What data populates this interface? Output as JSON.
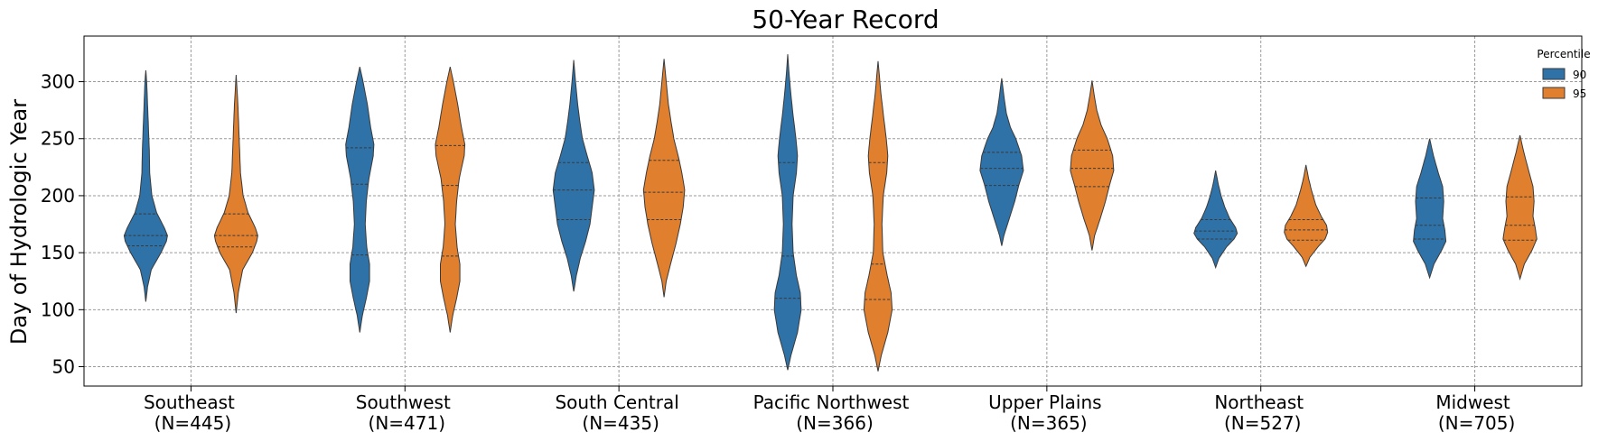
{
  "chart_data": {
    "type": "violin",
    "title": "50-Year Record",
    "xlabel": "",
    "ylabel": "Day of Hydrologic Year",
    "ylim": [
      33,
      340
    ],
    "yticks": [
      50,
      100,
      150,
      200,
      250,
      300
    ],
    "grid": true,
    "legend": {
      "title": "Percentile",
      "position": "top-right"
    },
    "categories": [
      {
        "line1": "Southeast",
        "line2": "(N=445)"
      },
      {
        "line1": "Southwest",
        "line2": "(N=471)"
      },
      {
        "line1": "South Central",
        "line2": "(N=435)"
      },
      {
        "line1": "Pacific Northwest",
        "line2": "(N=366)"
      },
      {
        "line1": "Upper Plains",
        "line2": "(N=365)"
      },
      {
        "line1": "Northeast",
        "line2": "(N=527)"
      },
      {
        "line1": "Midwest",
        "line2": "(N=705)"
      }
    ],
    "series": [
      {
        "name": "90",
        "color": "#2e72a8",
        "violins": [
          {
            "min": 107,
            "max": 310,
            "q1": 156,
            "median": 165,
            "q3": 184,
            "profile": [
              [
                107,
                0.0
              ],
              [
                120,
                0.08
              ],
              [
                135,
                0.25
              ],
              [
                150,
                0.7
              ],
              [
                160,
                0.95
              ],
              [
                165,
                1.0
              ],
              [
                172,
                0.85
              ],
              [
                185,
                0.5
              ],
              [
                200,
                0.28
              ],
              [
                220,
                0.18
              ],
              [
                240,
                0.16
              ],
              [
                260,
                0.12
              ],
              [
                280,
                0.08
              ],
              [
                300,
                0.04
              ],
              [
                310,
                0.0
              ]
            ]
          },
          {
            "min": 80,
            "max": 313,
            "q1": 148,
            "median": 210,
            "q3": 242,
            "profile": [
              [
                80,
                0.0
              ],
              [
                95,
                0.12
              ],
              [
                110,
                0.3
              ],
              [
                125,
                0.45
              ],
              [
                140,
                0.45
              ],
              [
                155,
                0.32
              ],
              [
                175,
                0.25
              ],
              [
                195,
                0.3
              ],
              [
                215,
                0.42
              ],
              [
                235,
                0.62
              ],
              [
                245,
                0.65
              ],
              [
                260,
                0.5
              ],
              [
                280,
                0.35
              ],
              [
                300,
                0.15
              ],
              [
                313,
                0.0
              ]
            ]
          },
          {
            "min": 116,
            "max": 319,
            "q1": 179,
            "median": 205,
            "q3": 229,
            "profile": [
              [
                116,
                0.0
              ],
              [
                130,
                0.12
              ],
              [
                145,
                0.3
              ],
              [
                160,
                0.55
              ],
              [
                175,
                0.75
              ],
              [
                190,
                0.85
              ],
              [
                205,
                0.95
              ],
              [
                220,
                0.85
              ],
              [
                235,
                0.62
              ],
              [
                250,
                0.4
              ],
              [
                265,
                0.28
              ],
              [
                280,
                0.18
              ],
              [
                300,
                0.08
              ],
              [
                319,
                0.0
              ]
            ]
          },
          {
            "min": 47,
            "max": 324,
            "q1": 110,
            "median": 147,
            "q3": 229,
            "profile": [
              [
                47,
                0.0
              ],
              [
                60,
                0.15
              ],
              [
                80,
                0.45
              ],
              [
                100,
                0.62
              ],
              [
                115,
                0.58
              ],
              [
                130,
                0.4
              ],
              [
                150,
                0.25
              ],
              [
                175,
                0.2
              ],
              [
                200,
                0.25
              ],
              [
                220,
                0.4
              ],
              [
                235,
                0.45
              ],
              [
                250,
                0.38
              ],
              [
                270,
                0.25
              ],
              [
                290,
                0.14
              ],
              [
                310,
                0.05
              ],
              [
                324,
                0.0
              ]
            ]
          },
          {
            "min": 156,
            "max": 303,
            "q1": 209,
            "median": 224,
            "q3": 238,
            "profile": [
              [
                156,
                0.0
              ],
              [
                165,
                0.1
              ],
              [
                180,
                0.35
              ],
              [
                195,
                0.6
              ],
              [
                210,
                0.8
              ],
              [
                222,
                1.0
              ],
              [
                235,
                0.92
              ],
              [
                250,
                0.65
              ],
              [
                260,
                0.4
              ],
              [
                272,
                0.22
              ],
              [
                285,
                0.12
              ],
              [
                303,
                0.0
              ]
            ]
          },
          {
            "min": 137,
            "max": 222,
            "q1": 162,
            "median": 169,
            "q3": 179,
            "profile": [
              [
                137,
                0.0
              ],
              [
                145,
                0.15
              ],
              [
                155,
                0.5
              ],
              [
                162,
                0.85
              ],
              [
                167,
                1.0
              ],
              [
                172,
                0.92
              ],
              [
                180,
                0.65
              ],
              [
                190,
                0.42
              ],
              [
                200,
                0.25
              ],
              [
                210,
                0.12
              ],
              [
                222,
                0.0
              ]
            ]
          },
          {
            "min": 128,
            "max": 250,
            "q1": 162,
            "median": 174,
            "q3": 198,
            "profile": [
              [
                128,
                0.0
              ],
              [
                140,
                0.2
              ],
              [
                152,
                0.55
              ],
              [
                160,
                0.75
              ],
              [
                170,
                0.7
              ],
              [
                180,
                0.6
              ],
              [
                195,
                0.65
              ],
              [
                208,
                0.6
              ],
              [
                220,
                0.4
              ],
              [
                235,
                0.18
              ],
              [
                250,
                0.0
              ]
            ]
          }
        ]
      },
      {
        "name": "95",
        "color": "#e07f2d",
        "violins": [
          {
            "min": 97,
            "max": 306,
            "q1": 155,
            "median": 165,
            "q3": 184,
            "profile": [
              [
                97,
                0.0
              ],
              [
                115,
                0.1
              ],
              [
                135,
                0.3
              ],
              [
                150,
                0.75
              ],
              [
                160,
                0.95
              ],
              [
                165,
                1.0
              ],
              [
                172,
                0.88
              ],
              [
                185,
                0.55
              ],
              [
                200,
                0.32
              ],
              [
                220,
                0.2
              ],
              [
                240,
                0.16
              ],
              [
                260,
                0.12
              ],
              [
                280,
                0.08
              ],
              [
                306,
                0.0
              ]
            ]
          },
          {
            "min": 80,
            "max": 313,
            "q1": 147,
            "median": 209,
            "q3": 244,
            "profile": [
              [
                80,
                0.0
              ],
              [
                95,
                0.12
              ],
              [
                110,
                0.3
              ],
              [
                125,
                0.45
              ],
              [
                140,
                0.45
              ],
              [
                155,
                0.32
              ],
              [
                175,
                0.24
              ],
              [
                195,
                0.3
              ],
              [
                215,
                0.42
              ],
              [
                235,
                0.65
              ],
              [
                245,
                0.68
              ],
              [
                260,
                0.52
              ],
              [
                280,
                0.35
              ],
              [
                300,
                0.15
              ],
              [
                313,
                0.0
              ]
            ]
          },
          {
            "min": 111,
            "max": 320,
            "q1": 179,
            "median": 203,
            "q3": 231,
            "profile": [
              [
                111,
                0.0
              ],
              [
                125,
                0.1
              ],
              [
                140,
                0.3
              ],
              [
                158,
                0.55
              ],
              [
                175,
                0.75
              ],
              [
                190,
                0.88
              ],
              [
                205,
                0.95
              ],
              [
                220,
                0.82
              ],
              [
                235,
                0.65
              ],
              [
                250,
                0.45
              ],
              [
                265,
                0.32
              ],
              [
                280,
                0.2
              ],
              [
                300,
                0.1
              ],
              [
                320,
                0.0
              ]
            ]
          },
          {
            "min": 46,
            "max": 318,
            "q1": 109,
            "median": 140,
            "q3": 229,
            "profile": [
              [
                46,
                0.0
              ],
              [
                60,
                0.15
              ],
              [
                80,
                0.45
              ],
              [
                100,
                0.65
              ],
              [
                115,
                0.6
              ],
              [
                130,
                0.42
              ],
              [
                150,
                0.22
              ],
              [
                175,
                0.18
              ],
              [
                200,
                0.24
              ],
              [
                220,
                0.4
              ],
              [
                235,
                0.45
              ],
              [
                250,
                0.38
              ],
              [
                270,
                0.25
              ],
              [
                290,
                0.13
              ],
              [
                318,
                0.0
              ]
            ]
          },
          {
            "min": 152,
            "max": 301,
            "q1": 208,
            "median": 224,
            "q3": 240,
            "profile": [
              [
                152,
                0.0
              ],
              [
                165,
                0.12
              ],
              [
                180,
                0.38
              ],
              [
                195,
                0.62
              ],
              [
                210,
                0.82
              ],
              [
                222,
                1.0
              ],
              [
                235,
                0.95
              ],
              [
                250,
                0.7
              ],
              [
                262,
                0.42
              ],
              [
                275,
                0.22
              ],
              [
                288,
                0.1
              ],
              [
                301,
                0.0
              ]
            ]
          },
          {
            "min": 138,
            "max": 227,
            "q1": 161,
            "median": 170,
            "q3": 179,
            "profile": [
              [
                138,
                0.0
              ],
              [
                146,
                0.18
              ],
              [
                155,
                0.55
              ],
              [
                162,
                0.88
              ],
              [
                168,
                1.0
              ],
              [
                174,
                0.95
              ],
              [
                182,
                0.7
              ],
              [
                192,
                0.45
              ],
              [
                205,
                0.25
              ],
              [
                215,
                0.12
              ],
              [
                227,
                0.0
              ]
            ]
          },
          {
            "min": 127,
            "max": 253,
            "q1": 161,
            "median": 174,
            "q3": 199,
            "profile": [
              [
                127,
                0.0
              ],
              [
                140,
                0.2
              ],
              [
                152,
                0.55
              ],
              [
                162,
                0.78
              ],
              [
                172,
                0.7
              ],
              [
                182,
                0.6
              ],
              [
                195,
                0.65
              ],
              [
                208,
                0.6
              ],
              [
                222,
                0.4
              ],
              [
                238,
                0.18
              ],
              [
                253,
                0.0
              ]
            ]
          }
        ]
      }
    ]
  }
}
